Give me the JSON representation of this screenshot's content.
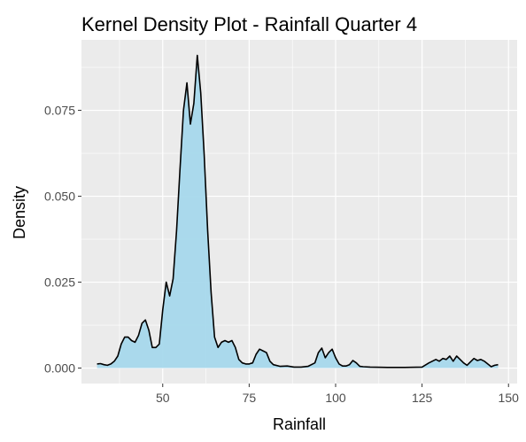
{
  "chart_data": {
    "type": "area",
    "title": "Kernel Density Plot - Rainfall Quarter 4",
    "xlabel": "Rainfall",
    "ylabel": "Density",
    "xlim": [
      26.5,
      152.5
    ],
    "ylim": [
      -0.0045,
      0.0955
    ],
    "x_ticks": [
      50,
      75,
      100,
      125,
      150
    ],
    "x_tick_labels": [
      "50",
      "75",
      "100",
      "125",
      "150"
    ],
    "y_ticks": [
      0,
      0.025,
      0.05,
      0.075
    ],
    "y_tick_labels": [
      "0.000",
      "0.025",
      "0.050",
      "0.075"
    ],
    "grid": true,
    "legend": "none",
    "colors": {
      "panel_background": "#ebebeb",
      "grid": "#ffffff",
      "fill": "#a6d8ec",
      "line": "#000000"
    },
    "series": [
      {
        "x": [
          31,
          32,
          33,
          34,
          35,
          36,
          37,
          38,
          39,
          40,
          41,
          42,
          43,
          44,
          45,
          46,
          47,
          48,
          49,
          50,
          51,
          52,
          53,
          54,
          55,
          56,
          57,
          58,
          59,
          60,
          61,
          62,
          63,
          64,
          65,
          66,
          67,
          68,
          69,
          70,
          71,
          72,
          73,
          74,
          75,
          76,
          77,
          78,
          79,
          80,
          81,
          82,
          84,
          86,
          88,
          90,
          92,
          94,
          95,
          96,
          97,
          98,
          99,
          100,
          101,
          102,
          103,
          104,
          105,
          106,
          107,
          108,
          110,
          115,
          120,
          125,
          127,
          129,
          130,
          131,
          132,
          133,
          134,
          135,
          136,
          137,
          138,
          139,
          140,
          141,
          142,
          143,
          144,
          145,
          146,
          147
        ],
        "y": [
          0.0012,
          0.0013,
          0.001,
          0.0008,
          0.0012,
          0.002,
          0.0035,
          0.007,
          0.009,
          0.009,
          0.008,
          0.0075,
          0.0095,
          0.013,
          0.014,
          0.011,
          0.006,
          0.006,
          0.007,
          0.017,
          0.025,
          0.021,
          0.026,
          0.04,
          0.058,
          0.075,
          0.083,
          0.071,
          0.077,
          0.091,
          0.08,
          0.062,
          0.04,
          0.022,
          0.009,
          0.006,
          0.0075,
          0.008,
          0.0075,
          0.008,
          0.006,
          0.0025,
          0.0015,
          0.0012,
          0.0012,
          0.0015,
          0.004,
          0.0055,
          0.005,
          0.0045,
          0.002,
          0.001,
          0.0005,
          0.0006,
          0.0003,
          0.0003,
          0.0005,
          0.0015,
          0.0045,
          0.0058,
          0.003,
          0.0045,
          0.0055,
          0.003,
          0.0012,
          0.0006,
          0.0006,
          0.001,
          0.0022,
          0.0015,
          0.0005,
          0.0004,
          0.0003,
          0.0002,
          0.0002,
          0.0003,
          0.0015,
          0.0025,
          0.002,
          0.0028,
          0.0025,
          0.0035,
          0.002,
          0.0035,
          0.0025,
          0.0015,
          0.0008,
          0.0018,
          0.0028,
          0.0022,
          0.0025,
          0.002,
          0.0012,
          0.0004,
          0.0008,
          0.001
        ]
      }
    ]
  }
}
